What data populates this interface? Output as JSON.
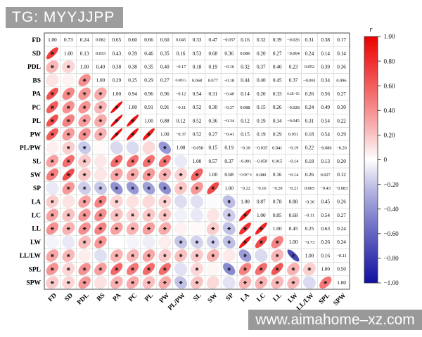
{
  "header": {
    "tg_label": "TG: MYYJJPP"
  },
  "watermark": {
    "text": "www.aimahome–xz.com"
  },
  "chart_data": {
    "type": "heatmap",
    "subtype": "correlation-matrix-ellipse",
    "title": "",
    "variables": [
      "FD",
      "SD",
      "PDL",
      "BS",
      "PA",
      "PC",
      "PL",
      "PW",
      "PL/PW",
      "SL",
      "SW",
      "SP",
      "LA",
      "LC",
      "LL",
      "LW",
      "LL/LW",
      "SPL",
      "SPW"
    ],
    "upper_triangle": [
      [
        "1.00",
        "0.73",
        "0.24",
        "0.082",
        "0.65",
        "0.60",
        "0.66",
        "0.60",
        "0.045",
        "0.33",
        "0.47",
        "-0.057",
        "0.16",
        "0.32",
        "0.39",
        "-0.026",
        "0.31",
        "0.38",
        "0.17"
      ],
      [
        "1.00",
        "0.13",
        "0.033",
        "0.43",
        "0.39",
        "0.46",
        "0.35",
        "0.16",
        "0.53",
        "0.68",
        "0.36",
        "0.086",
        "0.20",
        "0.27",
        "-0.064",
        "0.24",
        "0.14",
        "0.14"
      ],
      [
        "1.00",
        "0.40",
        "0.38",
        "0.38",
        "0.35",
        "0.40",
        "-0.17",
        "0.18",
        "0.19",
        "-0.16",
        "0.32",
        "0.37",
        "0.40",
        "0.23",
        "0.052",
        "0.39",
        "0.36"
      ],
      [
        "1.00",
        "0.29",
        "0.25",
        "0.29",
        "0.27",
        "0.009 5",
        "0.068",
        "0.077",
        "-0.18",
        "0.44",
        "0.40",
        "0.45",
        "0.37",
        "-0.091",
        "0.34",
        "0.096"
      ],
      [
        "1.00",
        "0.94",
        "0.96",
        "0.96",
        "-0.12",
        "0.54",
        "0.31",
        "-0.40",
        "0.14",
        "0.20",
        "0.33",
        "6.4E-05",
        "0.26",
        "0.56",
        "0.27"
      ],
      [
        "1.00",
        "0.91",
        "0.91",
        "-0.11",
        "0.52",
        "0.30",
        "-0.37",
        "0.088",
        "0.15",
        "0.26",
        "-0.028",
        "0.24",
        "0.49",
        "0.30"
      ],
      [
        "1.00",
        "0.88",
        "0.12",
        "0.52",
        "0.36",
        "-0.34",
        "0.12",
        "0.19",
        "0.34",
        "-0.045",
        "0.31",
        "0.54",
        "0.22"
      ],
      [
        "1.00",
        "-0.37",
        "0.52",
        "0.27",
        "-0.41",
        "0.15",
        "0.19",
        "0.29",
        "0.051",
        "0.18",
        "0.54",
        "0.29"
      ],
      [
        "1.00",
        "-0.058",
        "0.15",
        "0.19",
        "-0.10",
        "-0.035",
        "0.041",
        "-0.19",
        "0.22",
        "-0.086",
        "-0.20"
      ],
      [
        "1.00",
        "0.57",
        "0.37",
        "-0.091",
        "-0.059",
        "0.015",
        "-0.14",
        "0.18",
        "0.13",
        "0.20"
      ],
      [
        "1.00",
        "0.68",
        "-0.007 6",
        "0.080",
        "0.16",
        "-0.14",
        "0.26",
        "0.027",
        "0.12"
      ],
      [
        "1.00",
        "-0.22",
        "-0.16",
        "-0.20",
        "-0.21",
        "0.065",
        "-0.43",
        "-0.083"
      ],
      [
        "1.00",
        "0.87",
        "0.78",
        "0.88",
        "-0.36",
        "0.45",
        "0.26"
      ],
      [
        "1.00",
        "0.85",
        "0.68",
        "-0.11",
        "0.54",
        "0.27"
      ],
      [
        "1.00",
        "0.45",
        "0.25",
        "0.63",
        "0.24"
      ],
      [
        "1.00",
        "-0.73",
        "0.26",
        "0.24"
      ],
      [
        "1.00",
        "0.16",
        "-0.11"
      ],
      [
        "1.00",
        "0.50"
      ],
      [
        "1.00"
      ]
    ],
    "star_threshold": 0.13,
    "legend": {
      "title": "r",
      "ticks": [
        "1.00",
        "0.80",
        "0.60",
        "0.40",
        "0.20",
        "0",
        "-0.20",
        "-0.40",
        "-0.60",
        "-0.80",
        "-1.00"
      ],
      "tick_values": [
        1,
        0.8,
        0.6,
        0.4,
        0.2,
        0,
        -0.2,
        -0.4,
        -0.6,
        -0.8,
        -1
      ],
      "range": [
        -1,
        1
      ],
      "position": "right"
    },
    "colors": {
      "positive_max": "#eb0000",
      "negative_max": "#1010a0",
      "zero": "#ffffff",
      "grid": "#cfd6cf",
      "frame": "#4a4a4a",
      "star": "#1c1c1c",
      "text": "#000000"
    },
    "layout_hints": {
      "lower_triangle": "ellipses (tilt / for positive, \\ for negative), black star when significant",
      "upper_triangle": "numeric r values",
      "diagonal": "1.00"
    }
  }
}
